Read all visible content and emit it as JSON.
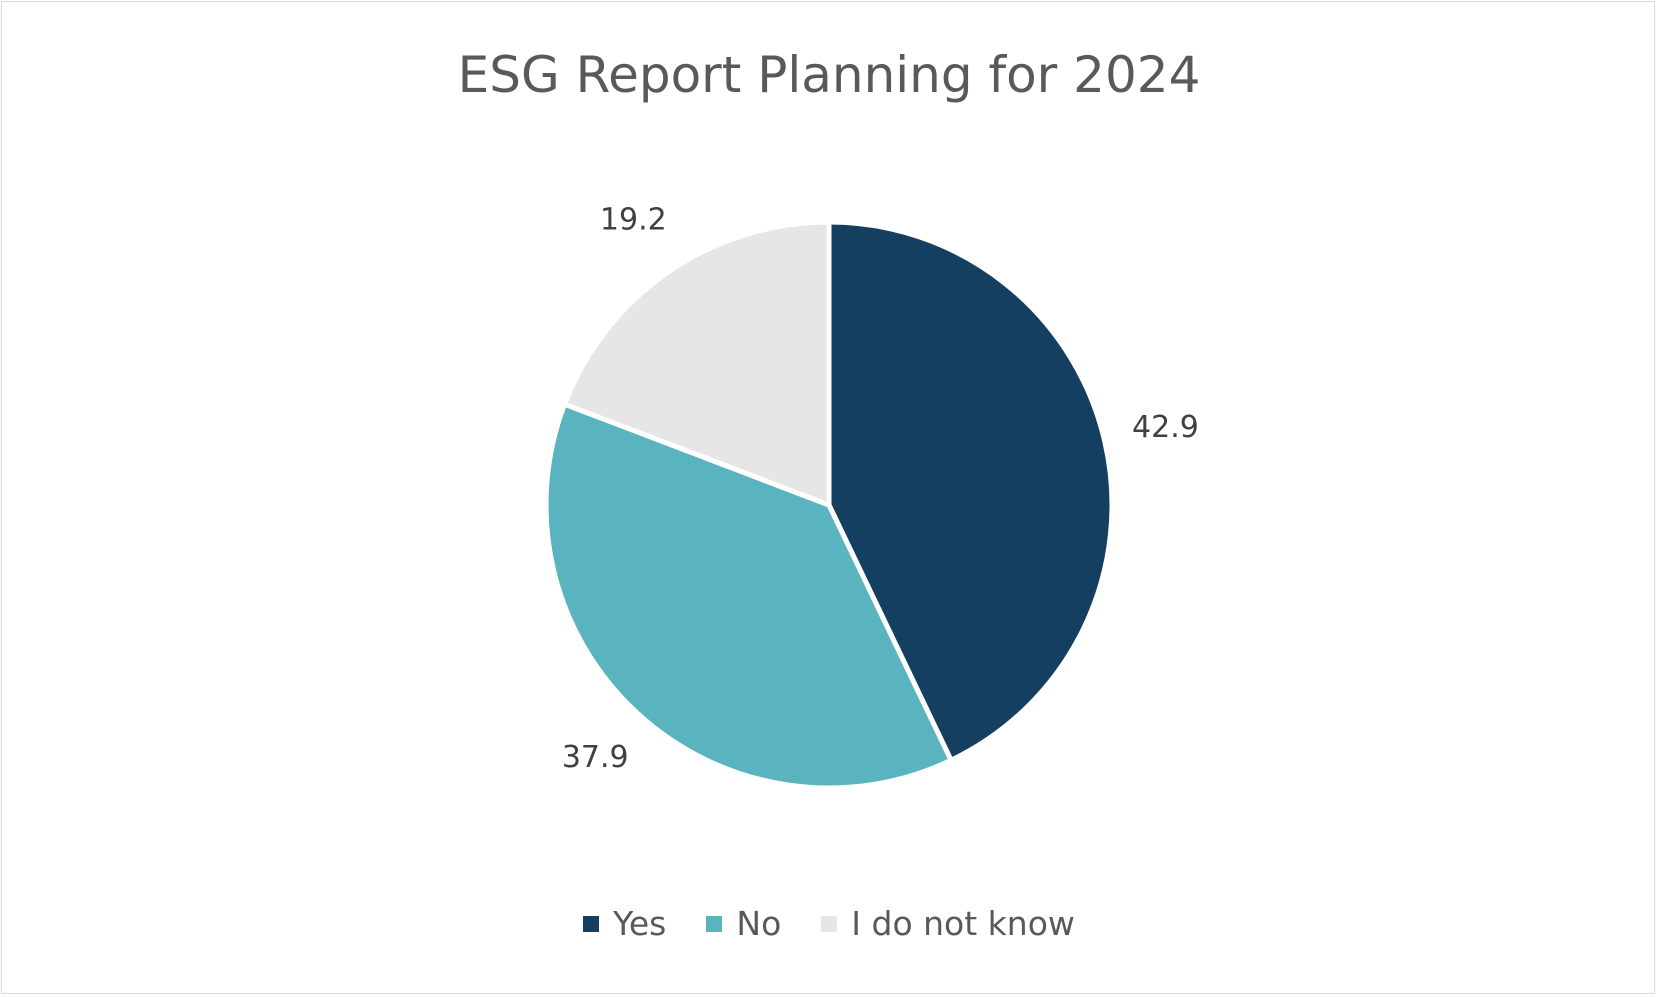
{
  "chart_data": {
    "type": "pie",
    "title": "ESG Report Planning for 2024",
    "slices": [
      {
        "label": "Yes",
        "value": 42.9,
        "color": "#153f60"
      },
      {
        "label": "No",
        "value": 37.9,
        "color": "#5ab4bf"
      },
      {
        "label": "I do not know",
        "value": 19.2,
        "color": "#e6e6e6"
      }
    ],
    "start_angle_deg": 0,
    "direction": "clockwise",
    "legend_position": "bottom",
    "data_labels": "outside"
  }
}
